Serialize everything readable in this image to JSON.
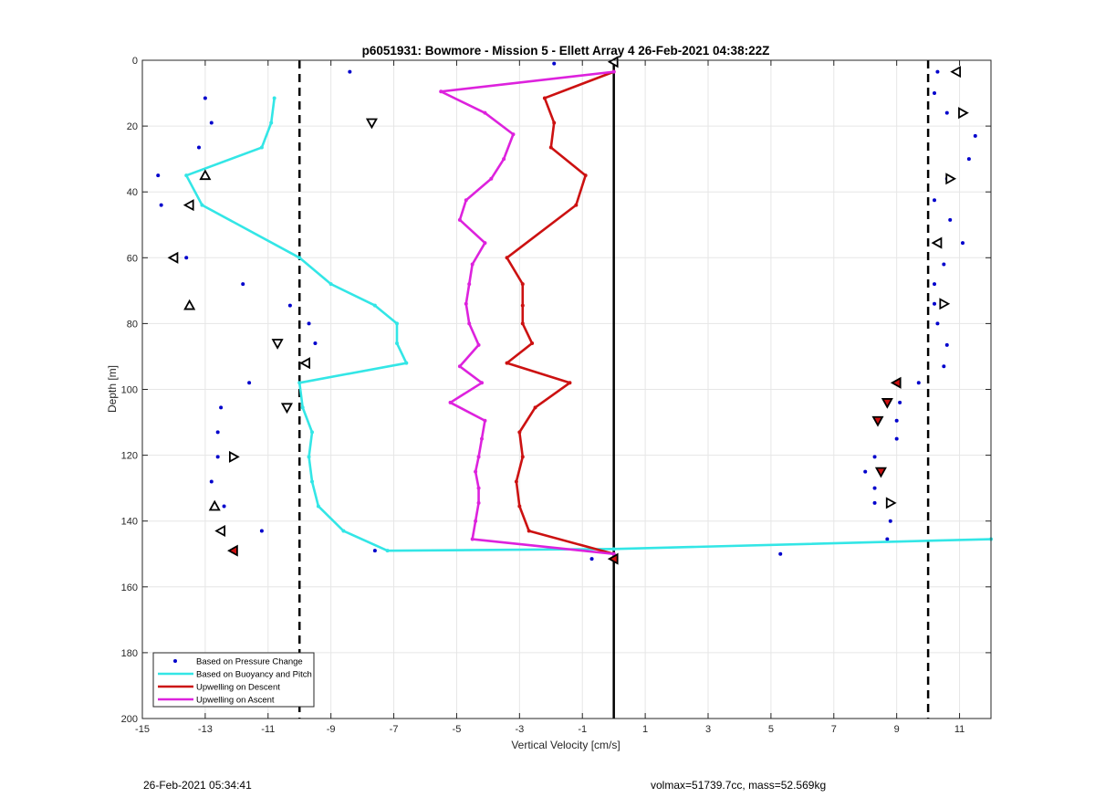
{
  "figure": {
    "timestamp_left": "26-Feb-2021 05:34:41",
    "footer_right": "volmax=51739.7cc, mass=52.569kg"
  },
  "chart_data": {
    "type": "line",
    "title": "p6051931: Bowmore - Mission 5 - Ellett Array 4 26-Feb-2021 04:38:22Z",
    "xlabel": "Vertical Velocity [cm/s]",
    "ylabel": "Depth [m]",
    "xlim": [
      -15,
      12
    ],
    "ylim": [
      200,
      0
    ],
    "y_reversed": true,
    "grid": true,
    "xticks": [
      -15,
      -13,
      -11,
      -9,
      -7,
      -5,
      -3,
      -1,
      1,
      3,
      5,
      7,
      9,
      11
    ],
    "yticks": [
      0,
      20,
      40,
      60,
      80,
      100,
      120,
      140,
      160,
      180,
      200
    ],
    "legend_position": "bottom-left",
    "vertical_lines": [
      {
        "x": -10,
        "style": "dashed",
        "color": "#000000"
      },
      {
        "x": 0,
        "style": "solid",
        "color": "#000000"
      },
      {
        "x": 10,
        "style": "dashed",
        "color": "#000000"
      }
    ],
    "series": [
      {
        "name": "Based on Pressure Change",
        "kind": "points",
        "color": "#0000cc",
        "points": [
          [
            -8.4,
            3.5
          ],
          [
            -1.9,
            1
          ],
          [
            -13,
            11.5
          ],
          [
            -12.8,
            19
          ],
          [
            -13.2,
            26.5
          ],
          [
            -14.5,
            35
          ],
          [
            -14.4,
            44
          ],
          [
            -13.6,
            60
          ],
          [
            -11.8,
            68
          ],
          [
            -10.3,
            74.5
          ],
          [
            -9.7,
            80
          ],
          [
            -9.5,
            86
          ],
          [
            -11.6,
            98
          ],
          [
            -12.5,
            105.5
          ],
          [
            -12.6,
            113
          ],
          [
            -12.6,
            120.5
          ],
          [
            -12.8,
            128
          ],
          [
            -12.4,
            135.5
          ],
          [
            -11.2,
            143
          ],
          [
            -7.6,
            149
          ],
          [
            -0.7,
            151.5
          ],
          [
            5.3,
            150
          ],
          [
            10.3,
            3.5
          ],
          [
            10.2,
            10
          ],
          [
            10.6,
            16
          ],
          [
            11.5,
            23
          ],
          [
            11.3,
            30
          ],
          [
            10.6,
            36
          ],
          [
            10.2,
            42.5
          ],
          [
            10.7,
            48.5
          ],
          [
            11.1,
            55.5
          ],
          [
            10.5,
            62
          ],
          [
            10.2,
            68
          ],
          [
            10.2,
            74
          ],
          [
            10.3,
            80
          ],
          [
            10.6,
            86.5
          ],
          [
            10.5,
            93
          ],
          [
            9.7,
            98
          ],
          [
            9.1,
            104
          ],
          [
            9,
            109.5
          ],
          [
            9,
            115
          ],
          [
            8.3,
            120.5
          ],
          [
            8,
            125
          ],
          [
            8.3,
            130
          ],
          [
            8.3,
            134.5
          ],
          [
            8.8,
            140
          ],
          [
            8.7,
            145.5
          ]
        ]
      },
      {
        "name": "Based on Buoyancy and Pitch",
        "kind": "line",
        "color": "#33e6e6",
        "points": [
          [
            -10.8,
            11.5
          ],
          [
            -10.9,
            19
          ],
          [
            -11.2,
            26.5
          ],
          [
            -13.6,
            35
          ],
          [
            -13.1,
            44
          ],
          [
            -10,
            60
          ],
          [
            -9,
            68
          ],
          [
            -7.6,
            74.5
          ],
          [
            -6.9,
            80
          ],
          [
            -6.9,
            86
          ],
          [
            -6.6,
            92
          ],
          [
            -10,
            98
          ],
          [
            -9.9,
            105.5
          ],
          [
            -9.6,
            113
          ],
          [
            -9.7,
            120.5
          ],
          [
            -9.6,
            128
          ],
          [
            -9.4,
            135.5
          ],
          [
            -8.6,
            143
          ],
          [
            -7.2,
            149
          ],
          [
            0,
            148.5
          ],
          [
            12,
            145.5
          ]
        ]
      },
      {
        "name": "Upwelling on Descent",
        "kind": "line",
        "color": "#cc1111",
        "points": [
          [
            0,
            3.5
          ],
          [
            -2.2,
            11.5
          ],
          [
            -1.9,
            19
          ],
          [
            -2,
            26.5
          ],
          [
            -0.9,
            35
          ],
          [
            -1.2,
            44
          ],
          [
            -3.4,
            60
          ],
          [
            -2.9,
            68
          ],
          [
            -2.9,
            74.5
          ],
          [
            -2.9,
            80
          ],
          [
            -2.6,
            86
          ],
          [
            -3.4,
            92
          ],
          [
            -1.4,
            98
          ],
          [
            -2.5,
            105.5
          ],
          [
            -3,
            113
          ],
          [
            -2.9,
            120.5
          ],
          [
            -3.1,
            128
          ],
          [
            -3,
            135.5
          ],
          [
            -2.7,
            143
          ],
          [
            0,
            150
          ]
        ]
      },
      {
        "name": "Upwelling on Ascent",
        "kind": "line",
        "color": "#dd22dd",
        "points": [
          [
            0,
            3.5
          ],
          [
            -5.5,
            9.5
          ],
          [
            -4.1,
            16
          ],
          [
            -3.2,
            22.5
          ],
          [
            -3.5,
            30
          ],
          [
            -3.9,
            36
          ],
          [
            -4.7,
            42.5
          ],
          [
            -4.9,
            48.5
          ],
          [
            -4.1,
            55.5
          ],
          [
            -4.5,
            62
          ],
          [
            -4.6,
            68
          ],
          [
            -4.7,
            74
          ],
          [
            -4.6,
            80
          ],
          [
            -4.3,
            86.5
          ],
          [
            -4.9,
            93
          ],
          [
            -4.2,
            98
          ],
          [
            -5.2,
            104
          ],
          [
            -4.1,
            109.5
          ],
          [
            -4.2,
            115
          ],
          [
            -4.3,
            120.5
          ],
          [
            -4.4,
            125
          ],
          [
            -4.3,
            130
          ],
          [
            -4.3,
            134.5
          ],
          [
            -4.4,
            140
          ],
          [
            -4.5,
            145.5
          ],
          [
            0,
            150
          ]
        ]
      }
    ],
    "marker_triangles": [
      {
        "x": -7.7,
        "y": 19,
        "dir": "down"
      },
      {
        "x": -13,
        "y": 35,
        "dir": "up"
      },
      {
        "x": -13.5,
        "y": 44,
        "dir": "left"
      },
      {
        "x": -14,
        "y": 60,
        "dir": "left"
      },
      {
        "x": -13.5,
        "y": 74.5,
        "dir": "up"
      },
      {
        "x": -10.7,
        "y": 86,
        "dir": "down"
      },
      {
        "x": -9.8,
        "y": 92,
        "dir": "left"
      },
      {
        "x": -10.4,
        "y": 105.5,
        "dir": "down"
      },
      {
        "x": -12.1,
        "y": 120.5,
        "dir": "right"
      },
      {
        "x": -12.7,
        "y": 135.5,
        "dir": "up"
      },
      {
        "x": -12.5,
        "y": 143,
        "dir": "left"
      },
      {
        "x": -12.1,
        "y": 149,
        "dir": "left",
        "filled": true
      },
      {
        "x": 0,
        "y": 0.5,
        "dir": "left"
      },
      {
        "x": 0,
        "y": 151.5,
        "dir": "left",
        "filled": true
      },
      {
        "x": 10.9,
        "y": 3.5,
        "dir": "left"
      },
      {
        "x": 11.1,
        "y": 16,
        "dir": "right"
      },
      {
        "x": 10.7,
        "y": 36,
        "dir": "right"
      },
      {
        "x": 10.3,
        "y": 55.5,
        "dir": "left"
      },
      {
        "x": 10.5,
        "y": 74,
        "dir": "right"
      },
      {
        "x": 9,
        "y": 98,
        "dir": "left",
        "filled": true
      },
      {
        "x": 8.7,
        "y": 104,
        "dir": "down",
        "filled": true
      },
      {
        "x": 8.4,
        "y": 109.5,
        "dir": "down",
        "filled": true
      },
      {
        "x": 8.5,
        "y": 125,
        "dir": "down",
        "filled": true
      },
      {
        "x": 8.8,
        "y": 134.5,
        "dir": "right"
      }
    ]
  }
}
